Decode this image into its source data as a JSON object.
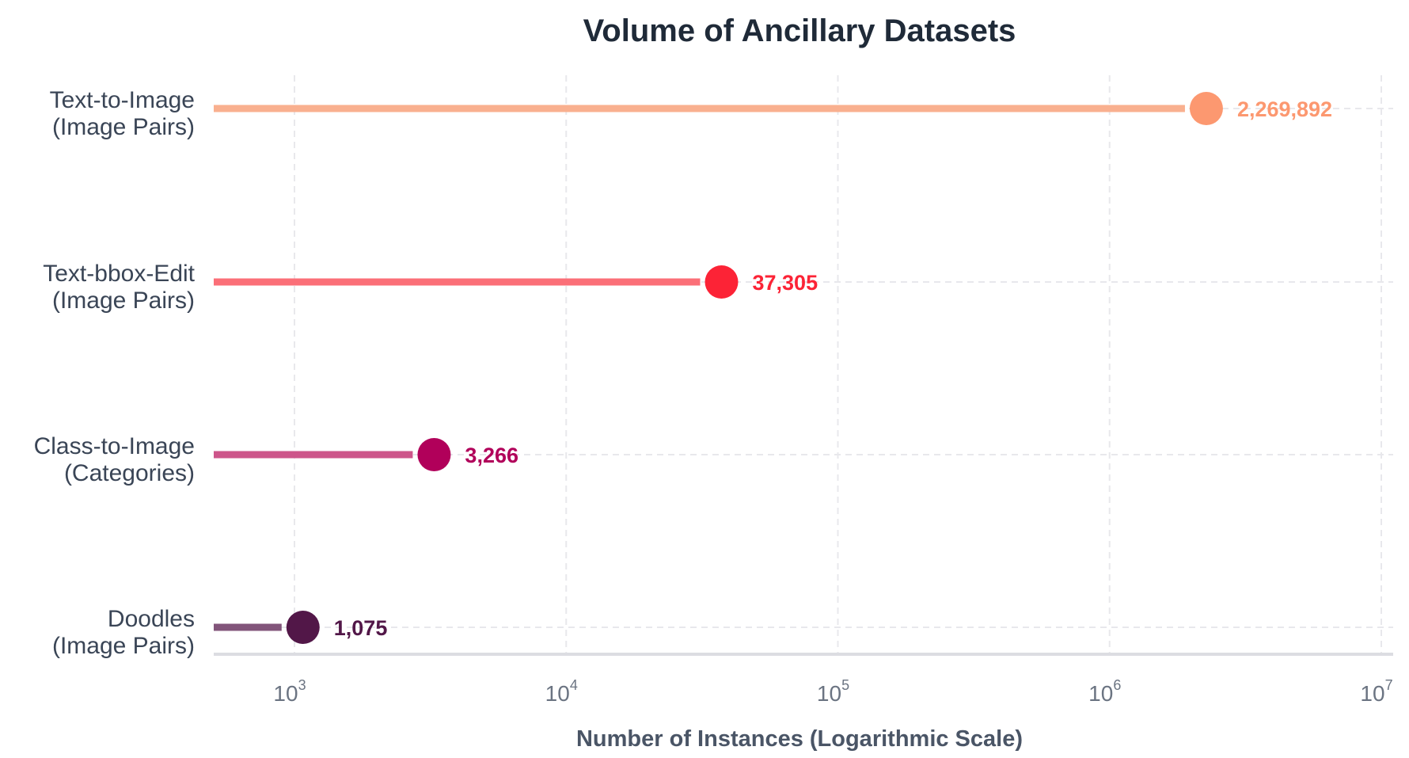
{
  "chart_data": {
    "type": "lollipop",
    "title": "Volume of Ancillary Datasets",
    "xlabel": "Number of Instances (Logarithmic Scale)",
    "ylabel": "",
    "x_scale": "log",
    "xlim": [
      500,
      10000000
    ],
    "grid": true,
    "x_ticks": [
      {
        "base": "10",
        "exp": "3",
        "value": 1000
      },
      {
        "base": "10",
        "exp": "4",
        "value": 10000
      },
      {
        "base": "10",
        "exp": "5",
        "value": 100000
      },
      {
        "base": "10",
        "exp": "6",
        "value": 1000000
      },
      {
        "base": "10",
        "exp": "7",
        "value": 10000000
      }
    ],
    "categories": [
      {
        "line1": "Text-to-Image",
        "line2": "(Image Pairs)",
        "value": 2269892,
        "value_label": "2,269,892",
        "line_color": "#f9b08f",
        "dot_color": "#fc9870",
        "label_color": "#fc9870"
      },
      {
        "line1": "Text-bbox-Edit",
        "line2": "(Image Pairs)",
        "value": 37305,
        "value_label": "37,305",
        "line_color": "#fb6f78",
        "dot_color": "#fc2336",
        "label_color": "#fc2336"
      },
      {
        "line1": "Class-to-Image",
        "line2": "(Categories)",
        "value": 3266,
        "value_label": "3,266",
        "line_color": "#cd558a",
        "dot_color": "#b1005a",
        "label_color": "#b1005a"
      },
      {
        "line1": "Doodles",
        "line2": "(Image Pairs)",
        "value": 1075,
        "value_label": "1,075",
        "line_color": "#82557a",
        "dot_color": "#521748",
        "label_color": "#521748"
      }
    ]
  }
}
